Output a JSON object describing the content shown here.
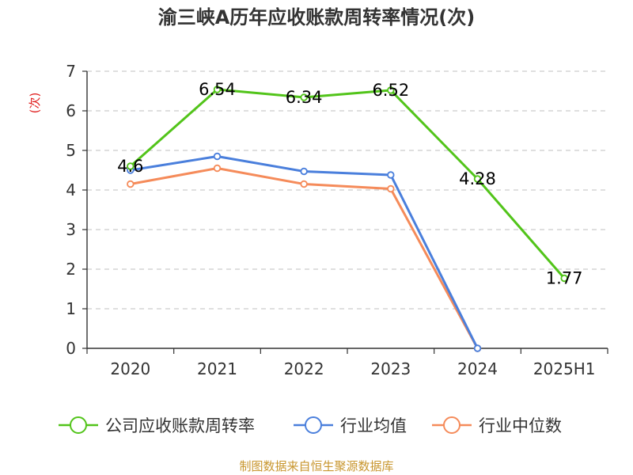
{
  "chart_data": {
    "type": "line",
    "title": "渝三峡A历年应收账款周转率情况(次)",
    "ylabel": "(次)",
    "xlabel": "",
    "categories": [
      "2020",
      "2021",
      "2022",
      "2023",
      "2024",
      "2025H1"
    ],
    "ylim": [
      0,
      7
    ],
    "yticks": [
      0,
      1,
      2,
      3,
      4,
      5,
      6,
      7
    ],
    "grid": true,
    "legend_position": "bottom",
    "series": [
      {
        "name": "公司应收账款周转率",
        "color": "#52c41a",
        "values": [
          4.6,
          6.54,
          6.34,
          6.52,
          4.28,
          1.77
        ],
        "labels": [
          "4.6",
          "6.54",
          "6.34",
          "6.52",
          "4.28",
          "1.77"
        ]
      },
      {
        "name": "行业均值",
        "color": "#4a7fdc",
        "values": [
          4.5,
          4.85,
          4.47,
          4.38,
          0.0,
          null
        ]
      },
      {
        "name": "行业中位数",
        "color": "#f58b5a",
        "values": [
          4.15,
          4.55,
          4.15,
          4.03,
          0.0,
          null
        ]
      }
    ]
  },
  "source": "制图数据来自恒生聚源数据库"
}
